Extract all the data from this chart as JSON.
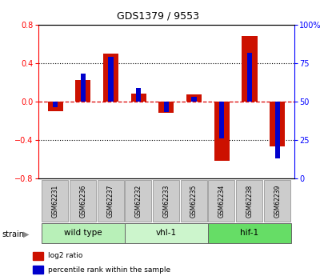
{
  "title": "GDS1379 / 9553",
  "samples": [
    "GSM62231",
    "GSM62236",
    "GSM62237",
    "GSM62232",
    "GSM62233",
    "GSM62235",
    "GSM62234",
    "GSM62238",
    "GSM62239"
  ],
  "log2_ratio": [
    -0.1,
    0.22,
    0.5,
    0.08,
    -0.12,
    0.07,
    -0.62,
    0.68,
    -0.47
  ],
  "percentile_rank": [
    46,
    68,
    79,
    59,
    43,
    53,
    26,
    82,
    13
  ],
  "groups": [
    {
      "label": "wild type",
      "start": 0,
      "end": 3,
      "color": "#b8f0b8"
    },
    {
      "label": "vhl-1",
      "start": 3,
      "end": 6,
      "color": "#ccf5cc"
    },
    {
      "label": "hif-1",
      "start": 6,
      "end": 9,
      "color": "#66dd66"
    }
  ],
  "ylim_left": [
    -0.8,
    0.8
  ],
  "ylim_right": [
    0,
    100
  ],
  "yticks_left": [
    -0.8,
    -0.4,
    0.0,
    0.4,
    0.8
  ],
  "yticks_right": [
    0,
    25,
    50,
    75,
    100
  ],
  "red_color": "#cc1100",
  "blue_color": "#0000cc",
  "background_color": "#ffffff",
  "grid_color": "#000000",
  "zero_line_color": "#dd0000",
  "sample_box_color": "#cccccc",
  "legend_red_label": "log2 ratio",
  "legend_blue_label": "percentile rank within the sample"
}
